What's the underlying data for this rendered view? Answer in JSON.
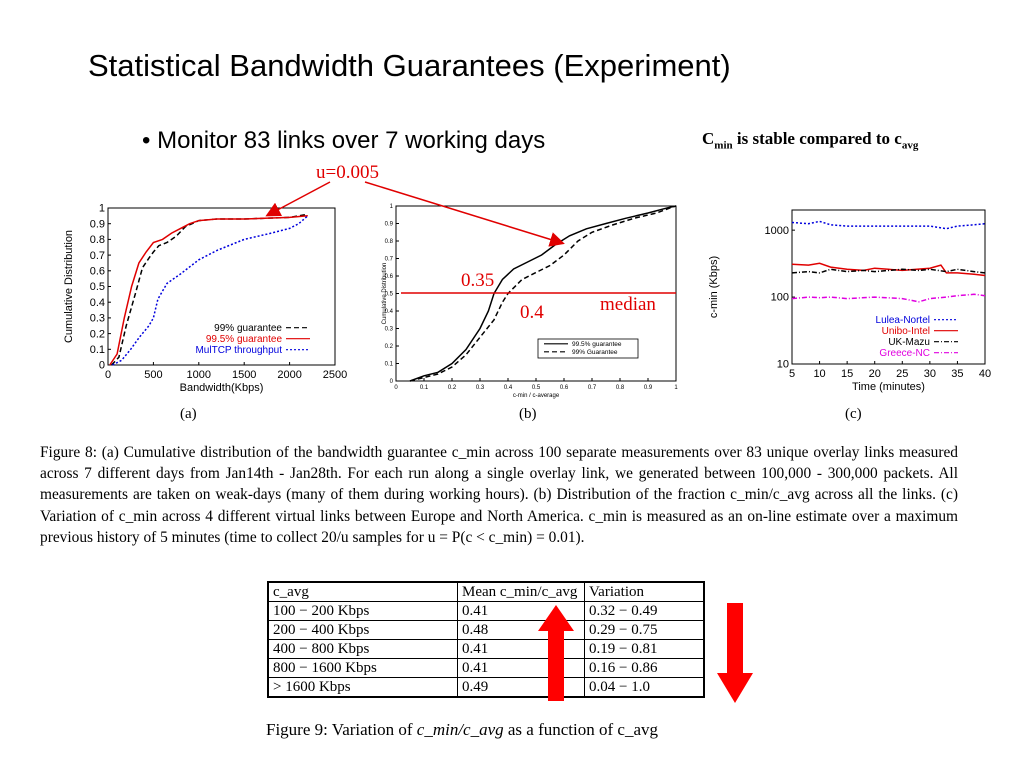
{
  "slide": {
    "title": "Statistical Bandwidth Guarantees (Experiment)",
    "bullet": "• Monitor 83 links over 7 working days",
    "note": {
      "c": "C",
      "sub1": "min",
      "mid": " is stable compared to c",
      "sub2": "avg"
    },
    "annotations": {
      "u": "u=0.005",
      "a": "0.35",
      "b": "0.4",
      "median": "median"
    },
    "accent_color": "#e00000"
  },
  "figures": {
    "a_label": "(a)",
    "b_label": "(b)",
    "c_label": "(c)"
  },
  "chart_data": [
    {
      "type": "line",
      "ylabel": "Cumulative Distribution",
      "xlabel": "Bandwidth(Kbps)",
      "xlim": [
        0,
        2500
      ],
      "ylim": [
        0,
        1
      ],
      "xticks": [
        "0",
        "500",
        "1000",
        "1500",
        "2000",
        "2500"
      ],
      "yticks": [
        "0",
        "0.1",
        "0.2",
        "0.3",
        "0.4",
        "0.5",
        "0.6",
        "0.7",
        "0.8",
        "0.9",
        "1"
      ],
      "legend_position": "bottom-right",
      "series": [
        {
          "name": "99% guarantee",
          "color": "#000000",
          "dash": "dash",
          "x": [
            40,
            120,
            200,
            300,
            380,
            450,
            500,
            560,
            650,
            750,
            850,
            1000,
            1200,
            1500,
            2000,
            2200
          ],
          "y": [
            0,
            0.05,
            0.25,
            0.45,
            0.62,
            0.68,
            0.72,
            0.76,
            0.78,
            0.82,
            0.88,
            0.92,
            0.93,
            0.93,
            0.94,
            0.96
          ]
        },
        {
          "name": "99.5% guarantee",
          "color": "#e00000",
          "dash": "solid",
          "x": [
            20,
            100,
            180,
            260,
            340,
            420,
            500,
            600,
            700,
            800,
            900,
            1000,
            1200,
            1500,
            2000,
            2200
          ],
          "y": [
            0,
            0.07,
            0.3,
            0.5,
            0.65,
            0.72,
            0.78,
            0.8,
            0.84,
            0.87,
            0.9,
            0.92,
            0.93,
            0.93,
            0.94,
            0.95
          ]
        },
        {
          "name": "MulTCP throughput",
          "color": "#0000dd",
          "dash": "dot",
          "x": [
            50,
            150,
            250,
            350,
            450,
            500,
            550,
            650,
            800,
            1000,
            1200,
            1500,
            1800,
            2000,
            2100,
            2200
          ],
          "y": [
            0,
            0.03,
            0.1,
            0.18,
            0.25,
            0.3,
            0.42,
            0.52,
            0.58,
            0.67,
            0.73,
            0.8,
            0.84,
            0.87,
            0.9,
            0.95
          ]
        }
      ]
    },
    {
      "type": "line",
      "ylabel": "Cumulative Distribution",
      "xlabel": "c-min / c-average",
      "xlim": [
        0,
        1
      ],
      "ylim": [
        0,
        1
      ],
      "xticks": [
        "0",
        "0.1",
        "0.2",
        "0.3",
        "0.4",
        "0.5",
        "0.6",
        "0.7",
        "0.8",
        "0.9",
        "1"
      ],
      "yticks": [
        "0",
        "0.1",
        "0.2",
        "0.3",
        "0.4",
        "0.5",
        "0.6",
        "0.7",
        "0.8",
        "0.9",
        "1"
      ],
      "median_line": 0.5,
      "legend_position": "bottom-right",
      "series": [
        {
          "name": "99.5% guarantee",
          "color": "#000000",
          "dash": "solid",
          "x": [
            0.05,
            0.1,
            0.15,
            0.2,
            0.25,
            0.3,
            0.33,
            0.35,
            0.38,
            0.42,
            0.47,
            0.52,
            0.57,
            0.62,
            0.68,
            0.75,
            0.82,
            0.9,
            0.97,
            1.0
          ],
          "y": [
            0,
            0.03,
            0.05,
            0.1,
            0.18,
            0.3,
            0.4,
            0.5,
            0.58,
            0.64,
            0.68,
            0.72,
            0.78,
            0.83,
            0.87,
            0.9,
            0.93,
            0.96,
            0.99,
            1.0
          ]
        },
        {
          "name": "99% Guarantee",
          "color": "#000000",
          "dash": "dash",
          "x": [
            0.05,
            0.1,
            0.15,
            0.2,
            0.25,
            0.3,
            0.35,
            0.38,
            0.4,
            0.45,
            0.5,
            0.55,
            0.6,
            0.65,
            0.7,
            0.77,
            0.85,
            0.93,
            0.98,
            1.0
          ],
          "y": [
            0,
            0.02,
            0.04,
            0.08,
            0.15,
            0.25,
            0.35,
            0.45,
            0.5,
            0.58,
            0.62,
            0.66,
            0.72,
            0.8,
            0.85,
            0.89,
            0.93,
            0.96,
            0.99,
            1.0
          ]
        }
      ]
    },
    {
      "type": "line",
      "ylabel": "c-min (Kbps)",
      "xlabel": "Time (minutes)",
      "xlim": [
        5,
        40
      ],
      "ylim": [
        10,
        2000
      ],
      "log_y": true,
      "xticks": [
        "5",
        "10",
        "15",
        "20",
        "25",
        "30",
        "35",
        "40"
      ],
      "yticks": [
        "10",
        "100",
        "1000"
      ],
      "legend_position": "bottom-right",
      "series": [
        {
          "name": "Lulea-Nortel",
          "color": "#0000dd",
          "dash": "dot",
          "x": [
            5,
            8,
            10,
            12,
            15,
            20,
            25,
            30,
            33,
            35,
            38,
            40
          ],
          "y": [
            1300,
            1250,
            1350,
            1200,
            1150,
            1150,
            1150,
            1150,
            1050,
            1150,
            1200,
            1250
          ]
        },
        {
          "name": "Unibo-Intel",
          "color": "#e00000",
          "dash": "solid",
          "x": [
            5,
            8,
            10,
            12,
            15,
            18,
            20,
            25,
            30,
            32,
            33,
            35,
            38,
            40
          ],
          "y": [
            310,
            300,
            320,
            280,
            260,
            250,
            270,
            250,
            270,
            300,
            230,
            230,
            220,
            210
          ]
        },
        {
          "name": "UK-Mazu",
          "color": "#000000",
          "dash": "dashdot",
          "x": [
            5,
            8,
            10,
            12,
            15,
            18,
            20,
            25,
            28,
            30,
            33,
            35,
            38,
            40
          ],
          "y": [
            230,
            240,
            230,
            260,
            240,
            250,
            240,
            260,
            250,
            260,
            240,
            260,
            240,
            230
          ]
        },
        {
          "name": "Greece-NC",
          "color": "#e000e0",
          "dash": "dashdot",
          "x": [
            5,
            8,
            10,
            12,
            15,
            20,
            25,
            28,
            30,
            33,
            35,
            38,
            40
          ],
          "y": [
            95,
            100,
            98,
            100,
            95,
            100,
            95,
            85,
            95,
            100,
            105,
            110,
            105
          ]
        }
      ]
    }
  ],
  "caption8": "Figure 8: (a) Cumulative distribution of the bandwidth guarantee c_min across 100 separate measurements over 83 unique overlay links measured across 7 different days from Jan14th - Jan28th. For each run along a single overlay link, we generated between 100,000 - 300,000 packets. All measurements are taken on weak-days (many of them during working hours). (b) Distribution of the fraction c_min/c_avg across all the links. (c) Variation of c_min across 4 different virtual links between Europe and North America. c_min is measured as an on-line estimate over a maximum previous history of 5 minutes (time to collect 20/u samples for u = P(c < c_min) = 0.01).",
  "table9": {
    "headers": [
      "c_avg",
      "Mean c_min/c_avg",
      "Variation"
    ],
    "rows": [
      [
        "100 − 200 Kbps",
        "0.41",
        "0.32 − 0.49"
      ],
      [
        "200 − 400 Kbps",
        "0.48",
        "0.29 − 0.75"
      ],
      [
        "400 − 800 Kbps",
        "0.41",
        "0.19 − 0.81"
      ],
      [
        "800 − 1600 Kbps",
        "0.41",
        "0.16 − 0.86"
      ],
      [
        "> 1600 Kbps",
        "0.49",
        "0.04 − 1.0"
      ]
    ]
  },
  "caption9": {
    "prefix": "Figure 9: Variation of ",
    "frac": "c_min/c_avg",
    "suffix": " as a function of c_avg"
  }
}
